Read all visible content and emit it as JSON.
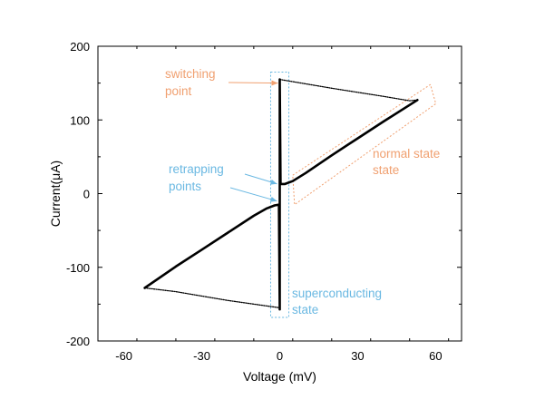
{
  "chart_data": {
    "type": "line",
    "title": "",
    "xlabel": "Voltage (mV)",
    "ylabel": "Current(μA)",
    "xlim": [
      -70,
      70
    ],
    "ylim": [
      -200,
      200
    ],
    "xticks": [
      -60,
      -30,
      0,
      30,
      60
    ],
    "yticks": [
      -200,
      -100,
      0,
      100,
      200
    ],
    "grid": false,
    "legend": "none",
    "series": [
      {
        "style": "thick-solid",
        "color": "#000000",
        "x": [
          -52,
          -40,
          -30,
          -20,
          -10,
          -5,
          -2,
          -0.3,
          0,
          0,
          0.3,
          2,
          5,
          10,
          20,
          30,
          40,
          53
        ],
        "y": [
          -128,
          -99,
          -76,
          -53,
          -30,
          -20,
          -16,
          -15,
          -157,
          155,
          13,
          13,
          17,
          28,
          52,
          75,
          98,
          127
        ]
      },
      {
        "style": "thin-dotted-dense",
        "color": "#000000",
        "x": [
          0,
          20,
          40,
          50,
          53
        ],
        "y": [
          155,
          143,
          132,
          126,
          127
        ]
      },
      {
        "style": "thin-dotted-dense",
        "color": "#000000",
        "x": [
          -52,
          -40,
          -20,
          0
        ],
        "y": [
          -128,
          -133,
          -145,
          -155
        ]
      }
    ],
    "regions": [
      {
        "name": "superconducting-region",
        "shape": "rectangle",
        "color": "#6ab8e2",
        "x": [
          -3.5,
          3.5
        ],
        "y": [
          -168,
          165
        ]
      },
      {
        "name": "normal-state-region",
        "shape": "band",
        "color": "#f0a070",
        "from": [
          5,
          5
        ],
        "to": [
          58,
          128
        ],
        "offset_y": 20
      }
    ],
    "annotations": [
      {
        "text": [
          "switching",
          "point"
        ],
        "color": "#f0a070",
        "point_to": [
          0,
          150
        ]
      },
      {
        "text": [
          "normal state",
          "state"
        ],
        "color": "#f0a070"
      },
      {
        "text": [
          "retrapping",
          "points"
        ],
        "color": "#6ab8e2",
        "point_to": [
          [
            0,
            12
          ],
          [
            0,
            -15
          ]
        ]
      },
      {
        "text": [
          "superconducting",
          "state"
        ],
        "color": "#6ab8e2"
      }
    ]
  }
}
